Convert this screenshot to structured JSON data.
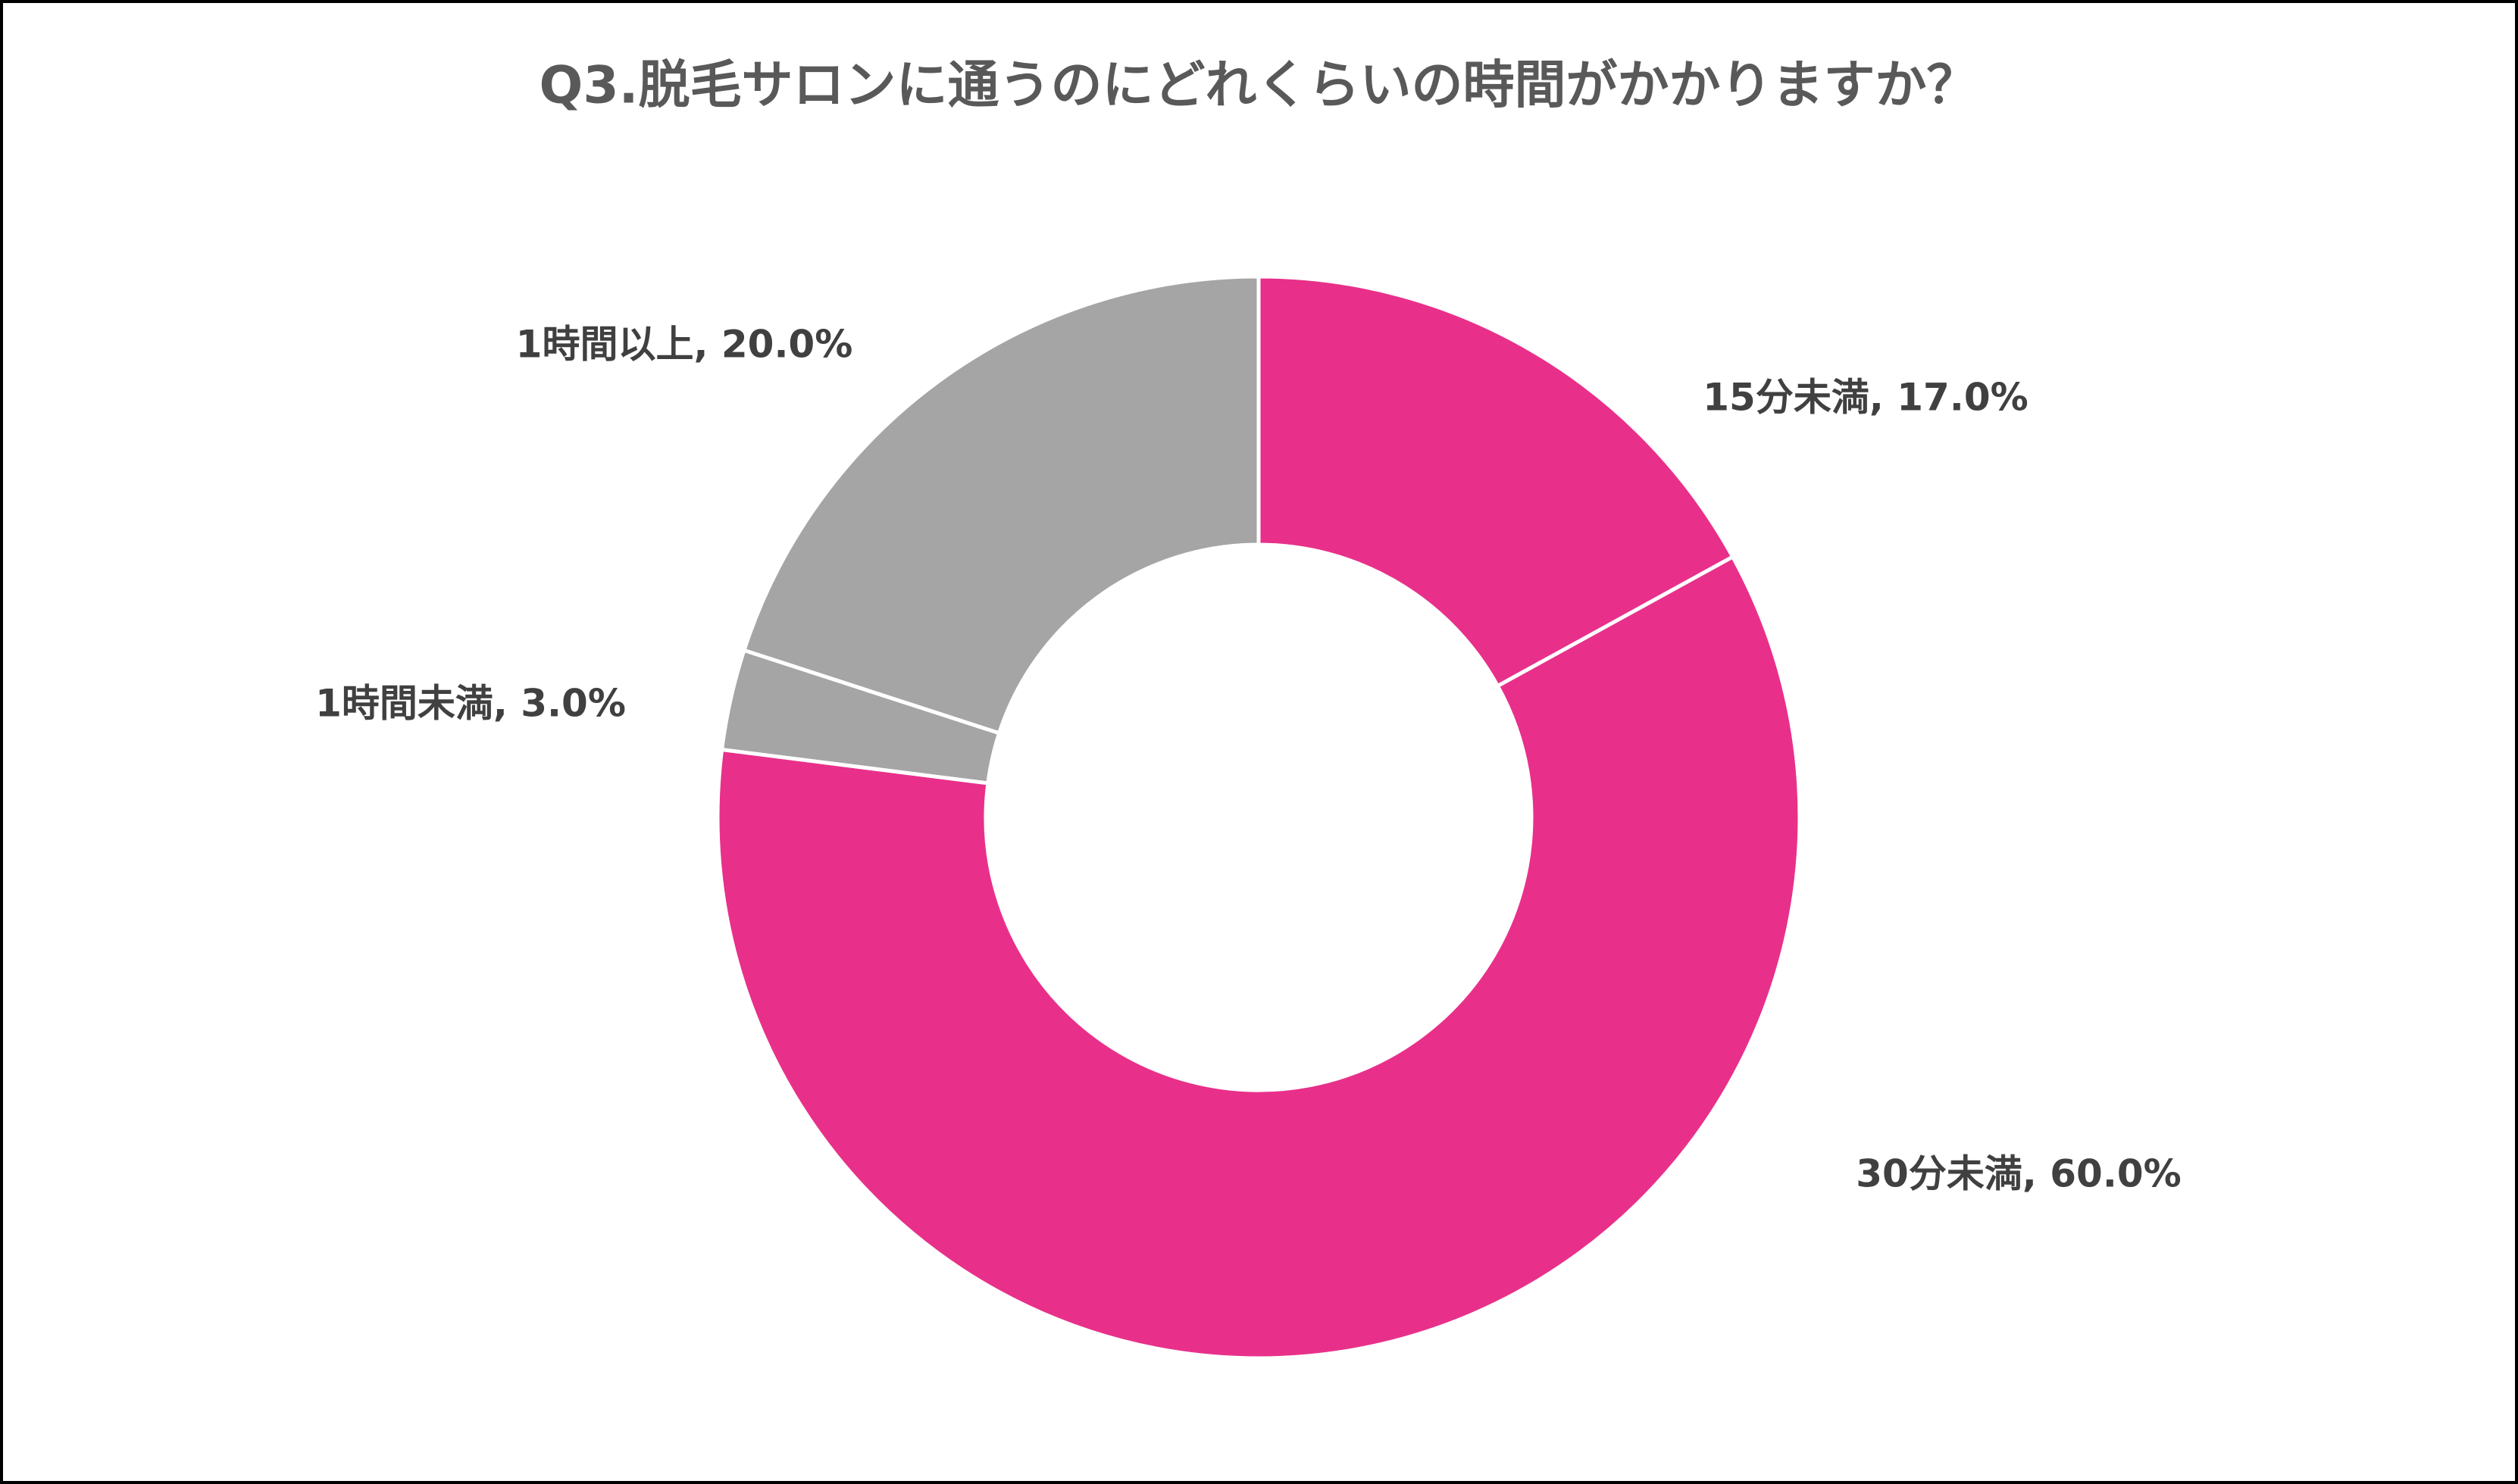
{
  "chart_data": {
    "type": "donut",
    "title": "Q3.脱毛サロンに通うのにどれくらいの時間がかかりますか？",
    "values": [
      17,
      60,
      3,
      20
    ],
    "value_labels": [
      "15分未満, 17.0%",
      "30分未満, 60.0%",
      "1時間未満, 3.0%",
      "1時間以上, 20.0%"
    ],
    "colors": [
      "#e8308a",
      "#e8308a",
      "#a5a5a5",
      "#a5a5a5"
    ]
  }
}
